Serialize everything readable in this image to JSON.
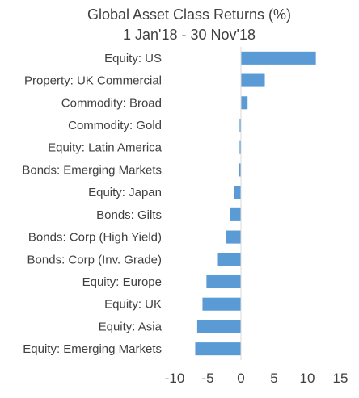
{
  "chart_data": {
    "type": "bar",
    "orientation": "horizontal",
    "title": "Global Asset Class Returns (%)",
    "subtitle": "1 Jan'18 - 30 Nov'18",
    "categories": [
      "Equity: US",
      "Property: UK Commercial",
      "Commodity: Broad",
      "Commodity: Gold",
      "Equity: Latin America",
      "Bonds: Emerging Markets",
      "Equity: Japan",
      "Bonds: Gilts",
      "Bonds: Corp (High Yield)",
      "Bonds: Corp (Inv. Grade)",
      "Equity: Europe",
      "Equity: UK",
      "Equity: Asia",
      "Equity: Emerging Markets"
    ],
    "values": [
      11.3,
      3.6,
      1.0,
      -0.2,
      -0.2,
      -0.3,
      -1.0,
      -1.7,
      -2.2,
      -3.6,
      -5.2,
      -5.8,
      -6.6,
      -6.9
    ],
    "xlim": [
      -10,
      15
    ],
    "xticks": [
      -10,
      -5,
      0,
      5,
      10,
      15
    ],
    "xlabel": "",
    "ylabel": "",
    "grid": false,
    "legend": "none",
    "bar_color": "#5b9bd5",
    "axis_color": "#d9d9d9",
    "text_color": "#404040"
  }
}
